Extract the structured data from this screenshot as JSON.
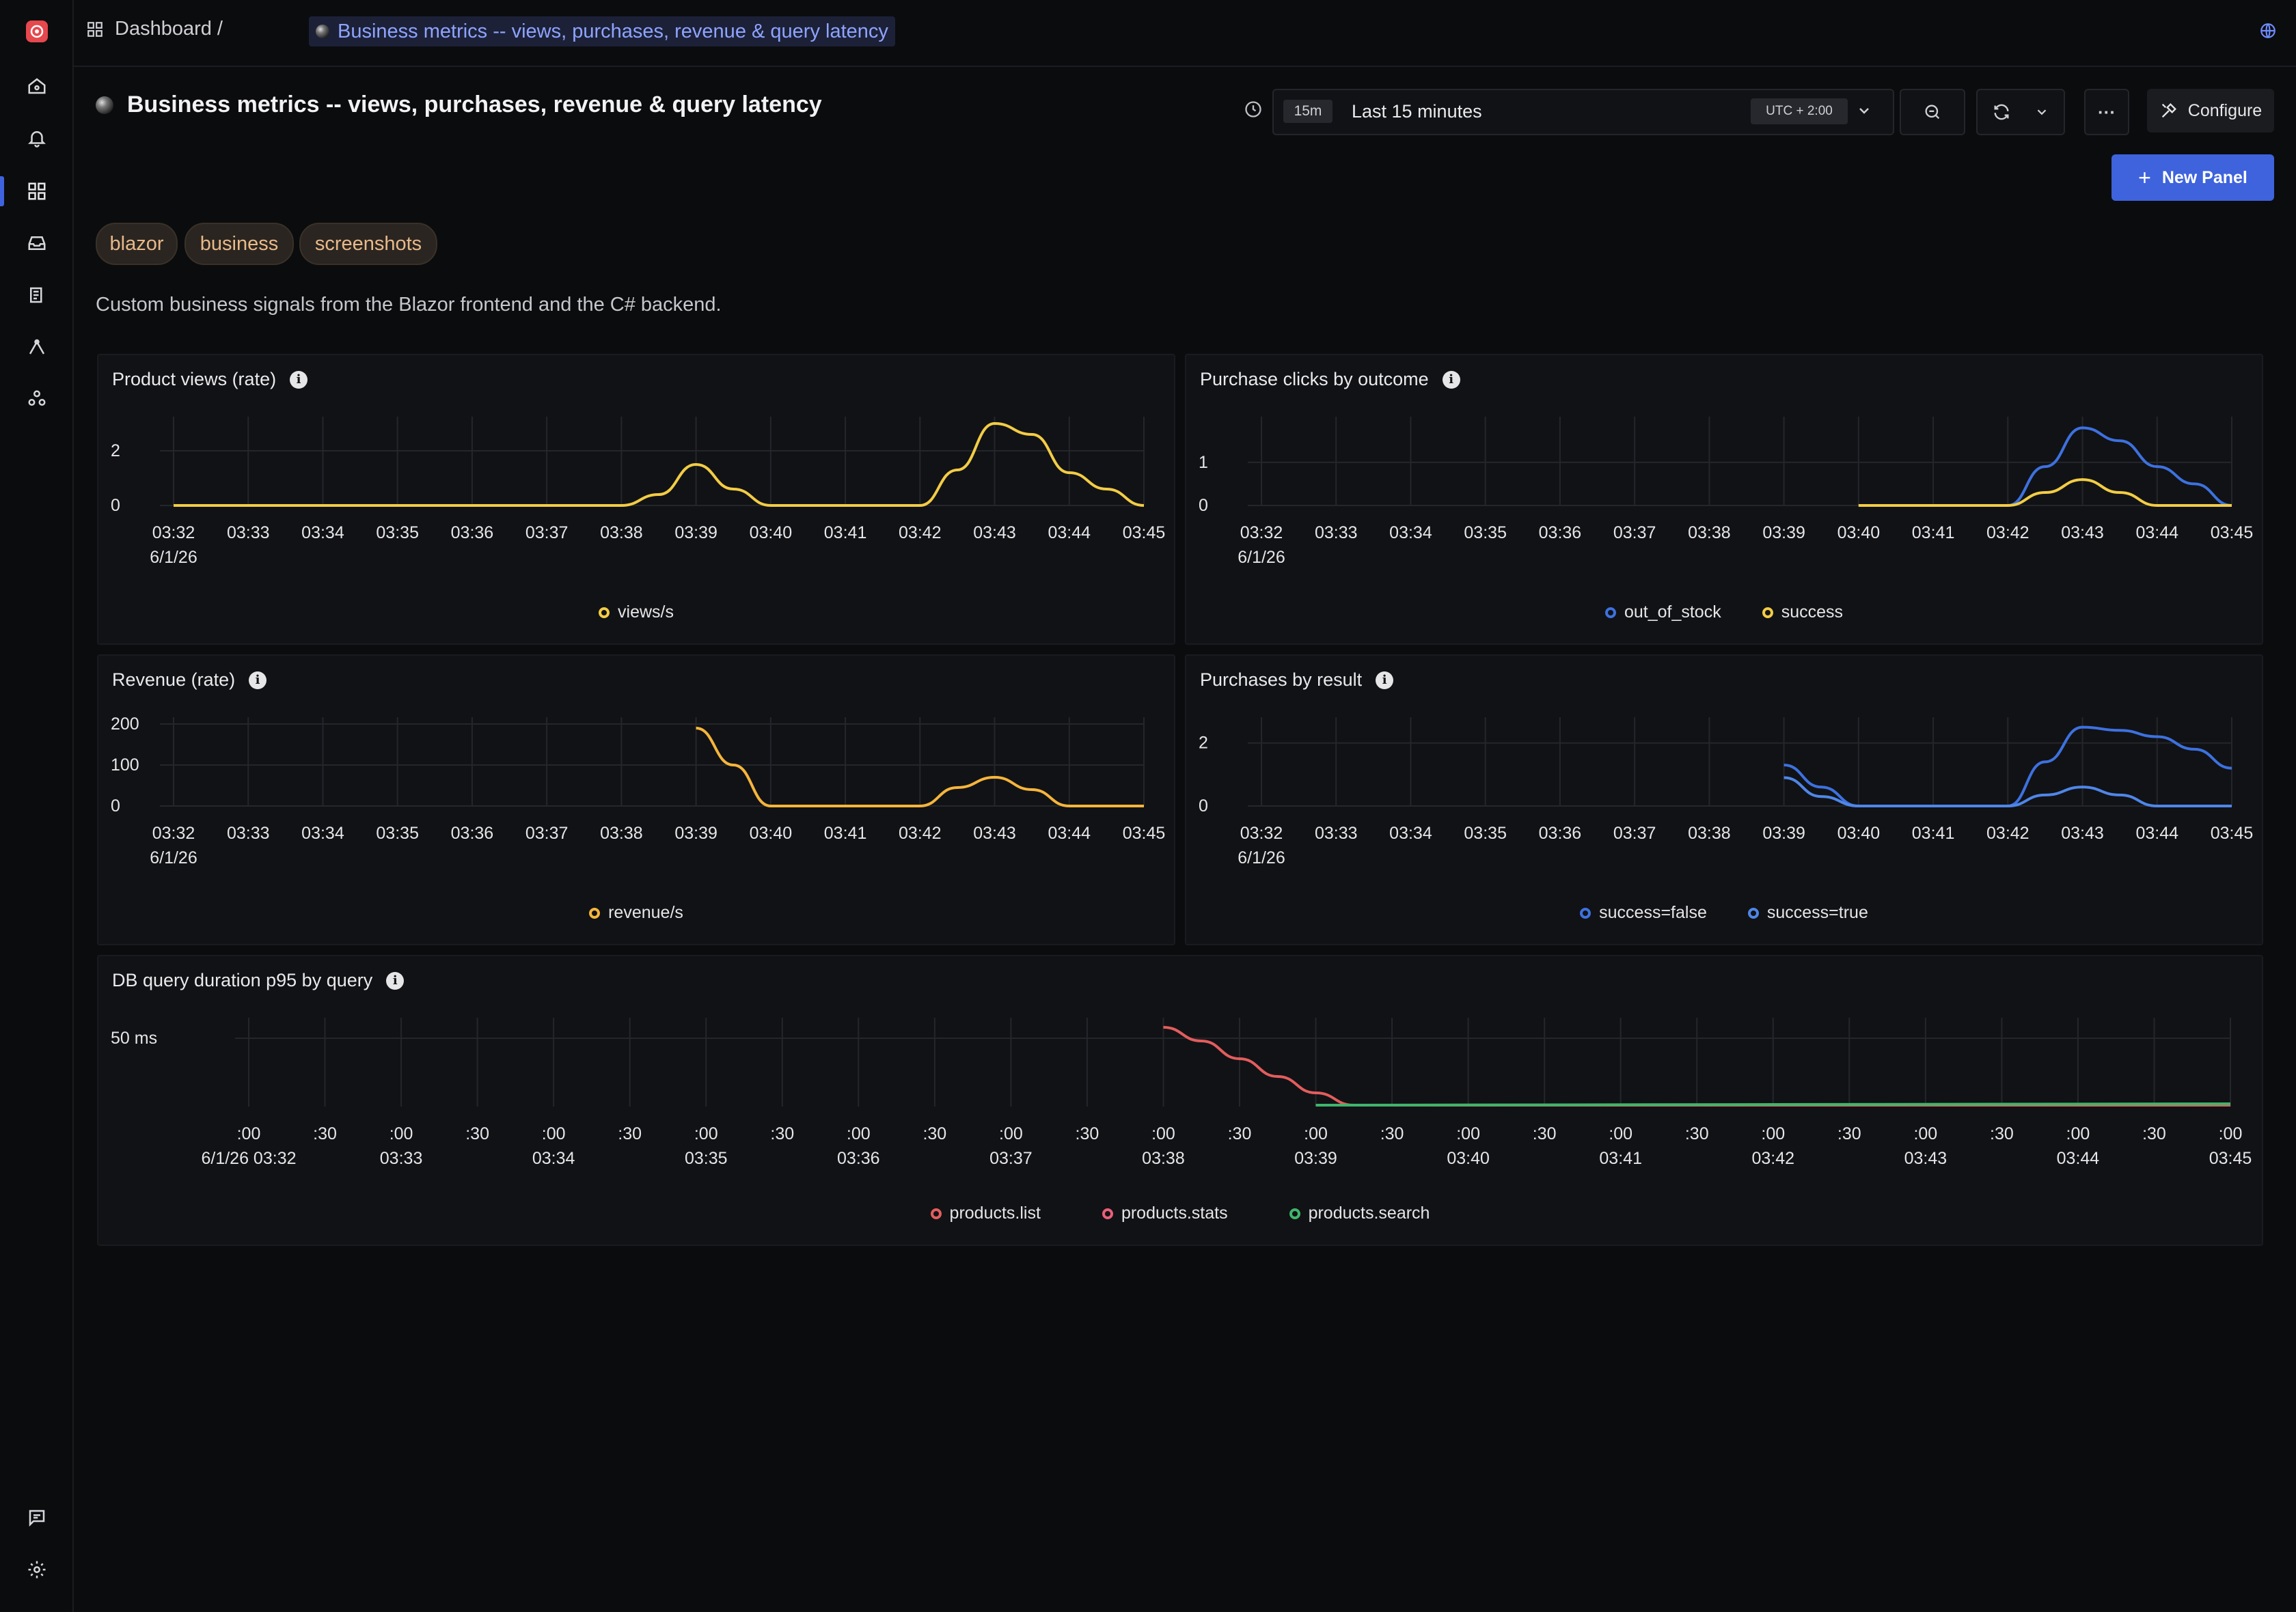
{
  "breadcrumb": {
    "root": "Dashboard",
    "separator": "/",
    "current": "Business metrics -- views, purchases, revenue & query latency"
  },
  "header": {
    "title": "Business metrics -- views, purchases, revenue & query latency",
    "time_chip": "15m",
    "time_range": "Last 15 minutes",
    "timezone": "UTC + 2:00",
    "configure_label": "Configure",
    "new_panel_label": "New Panel",
    "more_label": "···"
  },
  "tags": [
    "blazor",
    "business",
    "screenshots"
  ],
  "description": "Custom business signals from the Blazor frontend and the C# backend.",
  "colors": {
    "yellow": "#f2cc45",
    "orange": "#f5b53c",
    "blue": "#3d71e0",
    "blue2": "#4f86e8",
    "red": "#e35d5d",
    "pink": "#ea5f7a",
    "green": "#3fb56b"
  },
  "panels": {
    "views": {
      "title": "Product views (rate)",
      "legend": [
        "views/s"
      ]
    },
    "clicks": {
      "title": "Purchase clicks by outcome",
      "legend": [
        "out_of_stock",
        "success"
      ]
    },
    "revenue": {
      "title": "Revenue (rate)",
      "legend": [
        "revenue/s"
      ]
    },
    "purchases": {
      "title": "Purchases by result",
      "legend": [
        "success=false",
        "success=true"
      ]
    },
    "db": {
      "title": "DB query duration p95 by query",
      "legend": [
        "products.list",
        "products.stats",
        "products.search"
      ]
    }
  },
  "chart_data": [
    {
      "id": "views",
      "type": "line",
      "x": [
        "03:32",
        "03:33",
        "03:34",
        "03:35",
        "03:36",
        "03:37",
        "03:38",
        "03:39",
        "03:40",
        "03:41",
        "03:42",
        "03:43",
        "03:44",
        "03:45"
      ],
      "x_sub": "6/1/26",
      "yticks": [
        "0",
        "2"
      ],
      "ylim": [
        0,
        3
      ],
      "series": [
        {
          "name": "views/s",
          "color": "#f2cc45",
          "points": [
            [
              0,
              0
            ],
            [
              6,
              0
            ],
            [
              6.5,
              0.4
            ],
            [
              7,
              1.5
            ],
            [
              7.5,
              0.6
            ],
            [
              8,
              0
            ],
            [
              10,
              0
            ],
            [
              10.5,
              1.3
            ],
            [
              11,
              3
            ],
            [
              11.5,
              2.6
            ],
            [
              12,
              1.2
            ],
            [
              12.5,
              0.6
            ],
            [
              13,
              0
            ]
          ]
        }
      ]
    },
    {
      "id": "clicks",
      "type": "line",
      "x": [
        "03:32",
        "03:33",
        "03:34",
        "03:35",
        "03:36",
        "03:37",
        "03:38",
        "03:39",
        "03:40",
        "03:41",
        "03:42",
        "03:43",
        "03:44",
        "03:45"
      ],
      "x_sub": "6/1/26",
      "yticks": [
        "0",
        "1"
      ],
      "ylim": [
        0,
        1.9
      ],
      "series": [
        {
          "name": "out_of_stock",
          "color": "#3d71e0",
          "points": [
            [
              8,
              0
            ],
            [
              10,
              0
            ],
            [
              10.5,
              0.9
            ],
            [
              11,
              1.8
            ],
            [
              11.5,
              1.5
            ],
            [
              12,
              0.9
            ],
            [
              12.5,
              0.5
            ],
            [
              13,
              0
            ]
          ]
        },
        {
          "name": "success",
          "color": "#f2cc45",
          "points": [
            [
              8,
              0
            ],
            [
              10,
              0
            ],
            [
              10.5,
              0.3
            ],
            [
              11,
              0.6
            ],
            [
              11.5,
              0.3
            ],
            [
              12,
              0
            ],
            [
              13,
              0
            ]
          ]
        }
      ]
    },
    {
      "id": "revenue",
      "type": "line",
      "x": [
        "03:32",
        "03:33",
        "03:34",
        "03:35",
        "03:36",
        "03:37",
        "03:38",
        "03:39",
        "03:40",
        "03:41",
        "03:42",
        "03:43",
        "03:44",
        "03:45"
      ],
      "x_sub": "6/1/26",
      "yticks": [
        "0",
        "100",
        "200"
      ],
      "ylim": [
        0,
        200
      ],
      "series": [
        {
          "name": "revenue/s",
          "color": "#f5b53c",
          "points": [
            [
              7,
              190
            ],
            [
              7.5,
              100
            ],
            [
              8,
              0
            ],
            [
              10,
              0
            ],
            [
              10.5,
              45
            ],
            [
              11,
              70
            ],
            [
              11.5,
              40
            ],
            [
              12,
              0
            ],
            [
              13,
              0
            ]
          ]
        }
      ]
    },
    {
      "id": "purchases",
      "type": "line",
      "x": [
        "03:32",
        "03:33",
        "03:34",
        "03:35",
        "03:36",
        "03:37",
        "03:38",
        "03:39",
        "03:40",
        "03:41",
        "03:42",
        "03:43",
        "03:44",
        "03:45"
      ],
      "x_sub": "6/1/26",
      "yticks": [
        "0",
        "2"
      ],
      "ylim": [
        0,
        2.6
      ],
      "series": [
        {
          "name": "success=false",
          "color": "#3d71e0",
          "points": [
            [
              7,
              1.3
            ],
            [
              7.5,
              0.6
            ],
            [
              8,
              0
            ],
            [
              10,
              0
            ],
            [
              10.5,
              1.4
            ],
            [
              11,
              2.5
            ],
            [
              11.5,
              2.4
            ],
            [
              12,
              2.2
            ],
            [
              12.5,
              1.8
            ],
            [
              13,
              1.2
            ]
          ]
        },
        {
          "name": "success=true",
          "color": "#4f86e8",
          "points": [
            [
              7,
              0.9
            ],
            [
              7.5,
              0.3
            ],
            [
              8,
              0
            ],
            [
              10,
              0
            ],
            [
              10.5,
              0.35
            ],
            [
              11,
              0.6
            ],
            [
              11.5,
              0.35
            ],
            [
              12,
              0
            ],
            [
              13,
              0
            ]
          ]
        }
      ]
    },
    {
      "id": "db",
      "type": "line",
      "x": [
        ":00",
        ":30",
        ":00",
        ":30",
        ":00",
        ":30",
        ":00",
        ":30",
        ":00",
        ":30",
        ":00",
        ":30",
        ":00",
        ":30",
        ":00",
        ":30",
        ":00",
        ":30",
        ":00",
        ":30",
        ":00",
        ":30",
        ":00",
        ":30",
        ":00",
        ":30",
        ":00"
      ],
      "x_sub": [
        "6/1/26 03:32",
        "",
        "03:33",
        "",
        "03:34",
        "",
        "03:35",
        "",
        "03:36",
        "",
        "03:37",
        "",
        "03:38",
        "",
        "03:39",
        "",
        "03:40",
        "",
        "03:41",
        "",
        "03:42",
        "",
        "03:43",
        "",
        "03:44",
        "",
        "03:45"
      ],
      "yticks": [
        "50 ms"
      ],
      "ylim": [
        0,
        60
      ],
      "series": [
        {
          "name": "products.list",
          "color": "#e35d5d",
          "points": [
            [
              12,
              58
            ],
            [
              12.5,
              48
            ],
            [
              13,
              35
            ],
            [
              13.5,
              22
            ],
            [
              14,
              10
            ],
            [
              14.5,
              1
            ],
            [
              26,
              1
            ]
          ]
        },
        {
          "name": "products.stats",
          "color": "#ea5f7a",
          "points": []
        },
        {
          "name": "products.search",
          "color": "#3fb56b",
          "points": [
            [
              14,
              1
            ],
            [
              26,
              2
            ]
          ]
        }
      ]
    }
  ]
}
